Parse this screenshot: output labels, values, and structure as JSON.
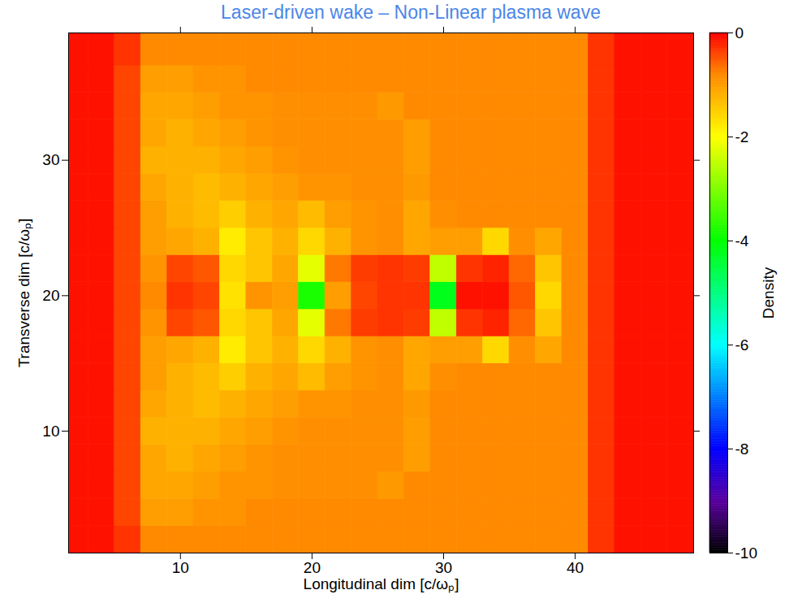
{
  "chart_data": {
    "type": "heatmap",
    "title": "Laser-driven wake – Non-Linear plasma wave",
    "x_label": "Longitudinal dim [c/ωₚ]",
    "y_label": "Transverse dim [c/ωₚ]",
    "xlim": [
      1.5,
      49
    ],
    "ylim": [
      1,
      39.4
    ],
    "xticks": [
      10,
      20,
      30,
      40
    ],
    "yticks": [
      10,
      20,
      30
    ],
    "x": [
      2,
      4,
      6,
      8,
      10,
      12,
      14,
      16,
      18,
      20,
      22,
      24,
      26,
      28,
      30,
      32,
      34,
      36,
      38,
      40,
      42,
      44,
      46,
      48
    ],
    "y": [
      2,
      4,
      6,
      8,
      10,
      12,
      14,
      16,
      18,
      20,
      22,
      24,
      26,
      28,
      30,
      32,
      34,
      36,
      38,
      40
    ],
    "density": [
      [
        -0.1,
        -0.1,
        -0.3,
        -0.8,
        -0.8,
        -0.8,
        -0.8,
        -0.8,
        -0.8,
        -0.8,
        -0.8,
        -0.8,
        -0.8,
        -0.8,
        -0.8,
        -0.8,
        -0.8,
        -0.8,
        -0.8,
        -0.8,
        -0.3,
        -0.1,
        -0.1,
        -0.1
      ],
      [
        -0.1,
        -0.1,
        -0.4,
        -1.0,
        -1.0,
        -0.9,
        -0.9,
        -0.8,
        -0.8,
        -0.8,
        -0.8,
        -0.8,
        -0.8,
        -0.8,
        -0.8,
        -0.8,
        -0.8,
        -0.8,
        -0.8,
        -0.8,
        -0.3,
        -0.1,
        -0.1,
        -0.1
      ],
      [
        -0.1,
        -0.1,
        -0.4,
        -1.1,
        -1.1,
        -1.0,
        -0.9,
        -0.9,
        -0.85,
        -0.85,
        -0.85,
        -0.85,
        -0.95,
        -0.8,
        -0.8,
        -0.8,
        -0.8,
        -0.8,
        -0.8,
        -0.8,
        -0.3,
        -0.1,
        -0.1,
        -0.1
      ],
      [
        -0.1,
        -0.1,
        -0.4,
        -1.1,
        -1.2,
        -1.1,
        -1.0,
        -0.9,
        -0.85,
        -0.85,
        -0.85,
        -0.85,
        -0.85,
        -1.0,
        -0.8,
        -0.8,
        -0.8,
        -0.8,
        -0.8,
        -0.8,
        -0.3,
        -0.1,
        -0.1,
        -0.1
      ],
      [
        -0.1,
        -0.1,
        -0.4,
        -1.2,
        -1.2,
        -1.2,
        -1.1,
        -1.0,
        -0.9,
        -0.85,
        -0.85,
        -0.85,
        -0.85,
        -1.0,
        -0.8,
        -0.8,
        -0.8,
        -0.8,
        -0.8,
        -0.8,
        -0.3,
        -0.1,
        -0.1,
        -0.1
      ],
      [
        -0.1,
        -0.1,
        -0.4,
        -1.1,
        -1.2,
        -1.3,
        -1.2,
        -1.1,
        -1.0,
        -0.9,
        -0.9,
        -0.85,
        -0.85,
        -0.95,
        -0.8,
        -0.8,
        -0.8,
        -0.8,
        -0.8,
        -0.8,
        -0.3,
        -0.1,
        -0.1,
        -0.1
      ],
      [
        -0.1,
        -0.1,
        -0.4,
        -1.0,
        -1.2,
        -1.3,
        -1.5,
        -1.2,
        -1.1,
        -1.3,
        -1.0,
        -0.9,
        -0.85,
        -1.1,
        -0.85,
        -0.8,
        -0.8,
        -0.8,
        -0.8,
        -0.8,
        -0.3,
        -0.1,
        -0.1,
        -0.1
      ],
      [
        -0.1,
        -0.1,
        -0.4,
        -1.0,
        -1.1,
        -1.2,
        -1.8,
        -1.4,
        -1.2,
        -1.6,
        -1.2,
        -0.9,
        -0.85,
        -1.1,
        -1.0,
        -1.0,
        -1.6,
        -0.85,
        -1.1,
        -0.8,
        -0.3,
        -0.1,
        -0.1,
        -0.1
      ],
      [
        -0.1,
        -0.1,
        -0.4,
        -0.9,
        -0.4,
        -0.5,
        -1.6,
        -1.4,
        -1.1,
        -2.2,
        -0.7,
        -0.35,
        -0.3,
        -0.35,
        -2.5,
        -0.3,
        -0.2,
        -0.6,
        -1.4,
        -0.8,
        -0.3,
        -0.1,
        -0.1,
        -0.1
      ],
      [
        -0.1,
        -0.1,
        -0.4,
        -0.8,
        -0.3,
        -0.4,
        -1.7,
        -0.9,
        -1.0,
        -3.8,
        -1.0,
        -0.4,
        -0.3,
        -0.3,
        -4.2,
        -0.1,
        -0.1,
        -0.5,
        -1.6,
        -0.8,
        -0.3,
        -0.1,
        -0.1,
        -0.1
      ],
      [
        -0.1,
        -0.1,
        -0.4,
        -0.9,
        -0.4,
        -0.5,
        -1.6,
        -1.4,
        -1.1,
        -2.2,
        -0.7,
        -0.35,
        -0.3,
        -0.35,
        -2.5,
        -0.3,
        -0.2,
        -0.6,
        -1.4,
        -0.8,
        -0.3,
        -0.1,
        -0.1,
        -0.1
      ],
      [
        -0.1,
        -0.1,
        -0.4,
        -1.0,
        -1.1,
        -1.2,
        -1.8,
        -1.4,
        -1.2,
        -1.6,
        -1.2,
        -0.9,
        -0.85,
        -1.1,
        -1.0,
        -1.0,
        -1.6,
        -0.85,
        -1.1,
        -0.8,
        -0.3,
        -0.1,
        -0.1,
        -0.1
      ],
      [
        -0.1,
        -0.1,
        -0.4,
        -1.0,
        -1.2,
        -1.3,
        -1.5,
        -1.2,
        -1.1,
        -1.3,
        -1.0,
        -0.9,
        -0.85,
        -1.1,
        -0.85,
        -0.8,
        -0.8,
        -0.8,
        -0.8,
        -0.8,
        -0.3,
        -0.1,
        -0.1,
        -0.1
      ],
      [
        -0.1,
        -0.1,
        -0.4,
        -1.1,
        -1.2,
        -1.3,
        -1.2,
        -1.1,
        -1.0,
        -0.9,
        -0.9,
        -0.85,
        -0.85,
        -0.95,
        -0.8,
        -0.8,
        -0.8,
        -0.8,
        -0.8,
        -0.8,
        -0.3,
        -0.1,
        -0.1,
        -0.1
      ],
      [
        -0.1,
        -0.1,
        -0.4,
        -1.2,
        -1.2,
        -1.2,
        -1.1,
        -1.0,
        -0.9,
        -0.85,
        -0.85,
        -0.85,
        -0.85,
        -1.0,
        -0.8,
        -0.8,
        -0.8,
        -0.8,
        -0.8,
        -0.8,
        -0.3,
        -0.1,
        -0.1,
        -0.1
      ],
      [
        -0.1,
        -0.1,
        -0.4,
        -1.1,
        -1.2,
        -1.1,
        -1.0,
        -0.9,
        -0.85,
        -0.85,
        -0.85,
        -0.85,
        -0.85,
        -1.0,
        -0.8,
        -0.8,
        -0.8,
        -0.8,
        -0.8,
        -0.8,
        -0.3,
        -0.1,
        -0.1,
        -0.1
      ],
      [
        -0.1,
        -0.1,
        -0.4,
        -1.1,
        -1.1,
        -1.0,
        -0.9,
        -0.9,
        -0.85,
        -0.85,
        -0.85,
        -0.85,
        -0.95,
        -0.8,
        -0.8,
        -0.8,
        -0.8,
        -0.8,
        -0.8,
        -0.8,
        -0.3,
        -0.1,
        -0.1,
        -0.1
      ],
      [
        -0.1,
        -0.1,
        -0.4,
        -1.0,
        -1.0,
        -0.9,
        -0.9,
        -0.8,
        -0.8,
        -0.8,
        -0.8,
        -0.8,
        -0.8,
        -0.8,
        -0.8,
        -0.8,
        -0.8,
        -0.8,
        -0.8,
        -0.8,
        -0.3,
        -0.1,
        -0.1,
        -0.1
      ],
      [
        -0.1,
        -0.1,
        -0.3,
        -0.8,
        -0.8,
        -0.8,
        -0.8,
        -0.8,
        -0.8,
        -0.8,
        -0.8,
        -0.8,
        -0.8,
        -0.8,
        -0.8,
        -0.8,
        -0.8,
        -0.8,
        -0.8,
        -0.8,
        -0.3,
        -0.1,
        -0.1,
        -0.1
      ],
      [
        -0.1,
        -0.1,
        -0.3,
        -0.8,
        -0.8,
        -0.8,
        -0.8,
        -0.8,
        -0.8,
        -0.8,
        -0.8,
        -0.8,
        -0.8,
        -0.8,
        -0.8,
        -0.8,
        -0.8,
        -0.8,
        -0.8,
        -0.8,
        -0.3,
        -0.1,
        -0.1,
        -0.1
      ]
    ],
    "colorbar": {
      "label": "Density",
      "range": [
        -10,
        0
      ],
      "ticks": [
        0,
        -2,
        -4,
        -6,
        -8,
        -10
      ]
    }
  }
}
